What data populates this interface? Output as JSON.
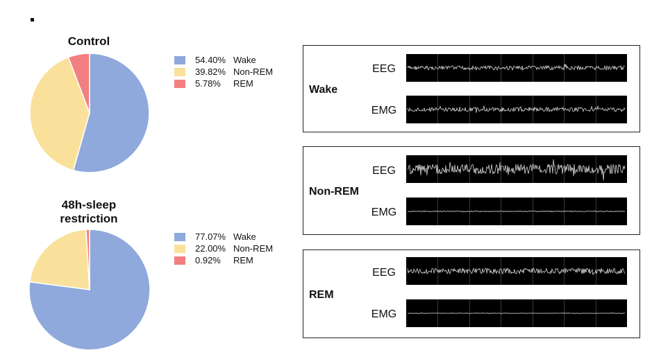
{
  "chart_data": [
    {
      "type": "pie",
      "title": "Control",
      "slices": [
        {
          "label": "Wake",
          "pct_text": "54.40%",
          "value": 54.4,
          "color": "#8fa9dc"
        },
        {
          "label": "Non-REM",
          "pct_text": "39.82%",
          "value": 39.82,
          "color": "#fae19b"
        },
        {
          "label": "REM",
          "pct_text": "5.78%",
          "value": 5.78,
          "color": "#f28080"
        }
      ]
    },
    {
      "type": "pie",
      "title_line1": "48h-sleep",
      "title_line2": "restriction",
      "slices": [
        {
          "label": "Wake",
          "pct_text": "77.07%",
          "value": 77.07,
          "color": "#8fa9dc"
        },
        {
          "label": "Non-REM",
          "pct_text": "22.00%",
          "value": 22.0,
          "color": "#fae19b"
        },
        {
          "label": "REM",
          "pct_text": "0.92%",
          "value": 0.92,
          "color": "#f28080"
        }
      ]
    }
  ],
  "traces": [
    {
      "state": "Wake",
      "eeg_label": "EEG",
      "emg_label": "EMG"
    },
    {
      "state": "Non-REM",
      "eeg_label": "EEG",
      "emg_label": "EMG"
    },
    {
      "state": "REM",
      "eeg_label": "EEG",
      "emg_label": "EMG"
    }
  ]
}
